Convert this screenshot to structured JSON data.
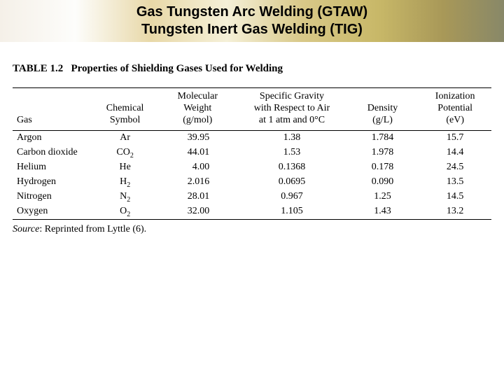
{
  "header": {
    "line1": "Gas Tungsten Arc Welding (GTAW)",
    "line2": "Tungsten Inert Gas Welding (TIG)"
  },
  "table": {
    "label": "TABLE 1.2",
    "title": "Properties of Shielding Gases Used for Welding",
    "columns": {
      "gas": "Gas",
      "symbol": "Chemical\nSymbol",
      "mw": "Molecular\nWeight\n(g/mol)",
      "sg": "Specific Gravity\nwith Respect to Air\nat 1 atm and 0°C",
      "density": "Density\n(g/L)",
      "ion": "Ionization\nPotential\n(eV)"
    },
    "rows": [
      {
        "gas": "Argon",
        "symbol": "Ar",
        "mw": "39.95",
        "sg": "1.38",
        "density": "1.784",
        "ion": "15.7"
      },
      {
        "gas": "Carbon dioxide",
        "symbol": "CO2",
        "mw": "44.01",
        "sg": "1.53",
        "density": "1.978",
        "ion": "14.4"
      },
      {
        "gas": "Helium",
        "symbol": "He",
        "mw": "4.00",
        "sg": "0.1368",
        "density": "0.178",
        "ion": "24.5"
      },
      {
        "gas": "Hydrogen",
        "symbol": "H2",
        "mw": "2.016",
        "sg": "0.0695",
        "density": "0.090",
        "ion": "13.5"
      },
      {
        "gas": "Nitrogen",
        "symbol": "N2",
        "mw": "28.01",
        "sg": "0.967",
        "density": "1.25",
        "ion": "14.5"
      },
      {
        "gas": "Oxygen",
        "symbol": "O2",
        "mw": "32.00",
        "sg": "1.105",
        "density": "1.43",
        "ion": "13.2"
      }
    ],
    "source_label": "Source",
    "source_text": ": Reprinted from Lyttle (6)."
  },
  "style": {
    "header_gradient": [
      "#f5f0e8",
      "#fdfdfb",
      "#e8d8a8",
      "#f5f0d8",
      "#d8c888",
      "#c8b868",
      "#a89858",
      "#888868"
    ],
    "header_font_size": 20,
    "body_font_family": "Times New Roman",
    "body_font_size": 14,
    "caption_font_size": 15,
    "rule_color": "#000000",
    "background_color": "#ffffff",
    "text_color": "#000000"
  }
}
